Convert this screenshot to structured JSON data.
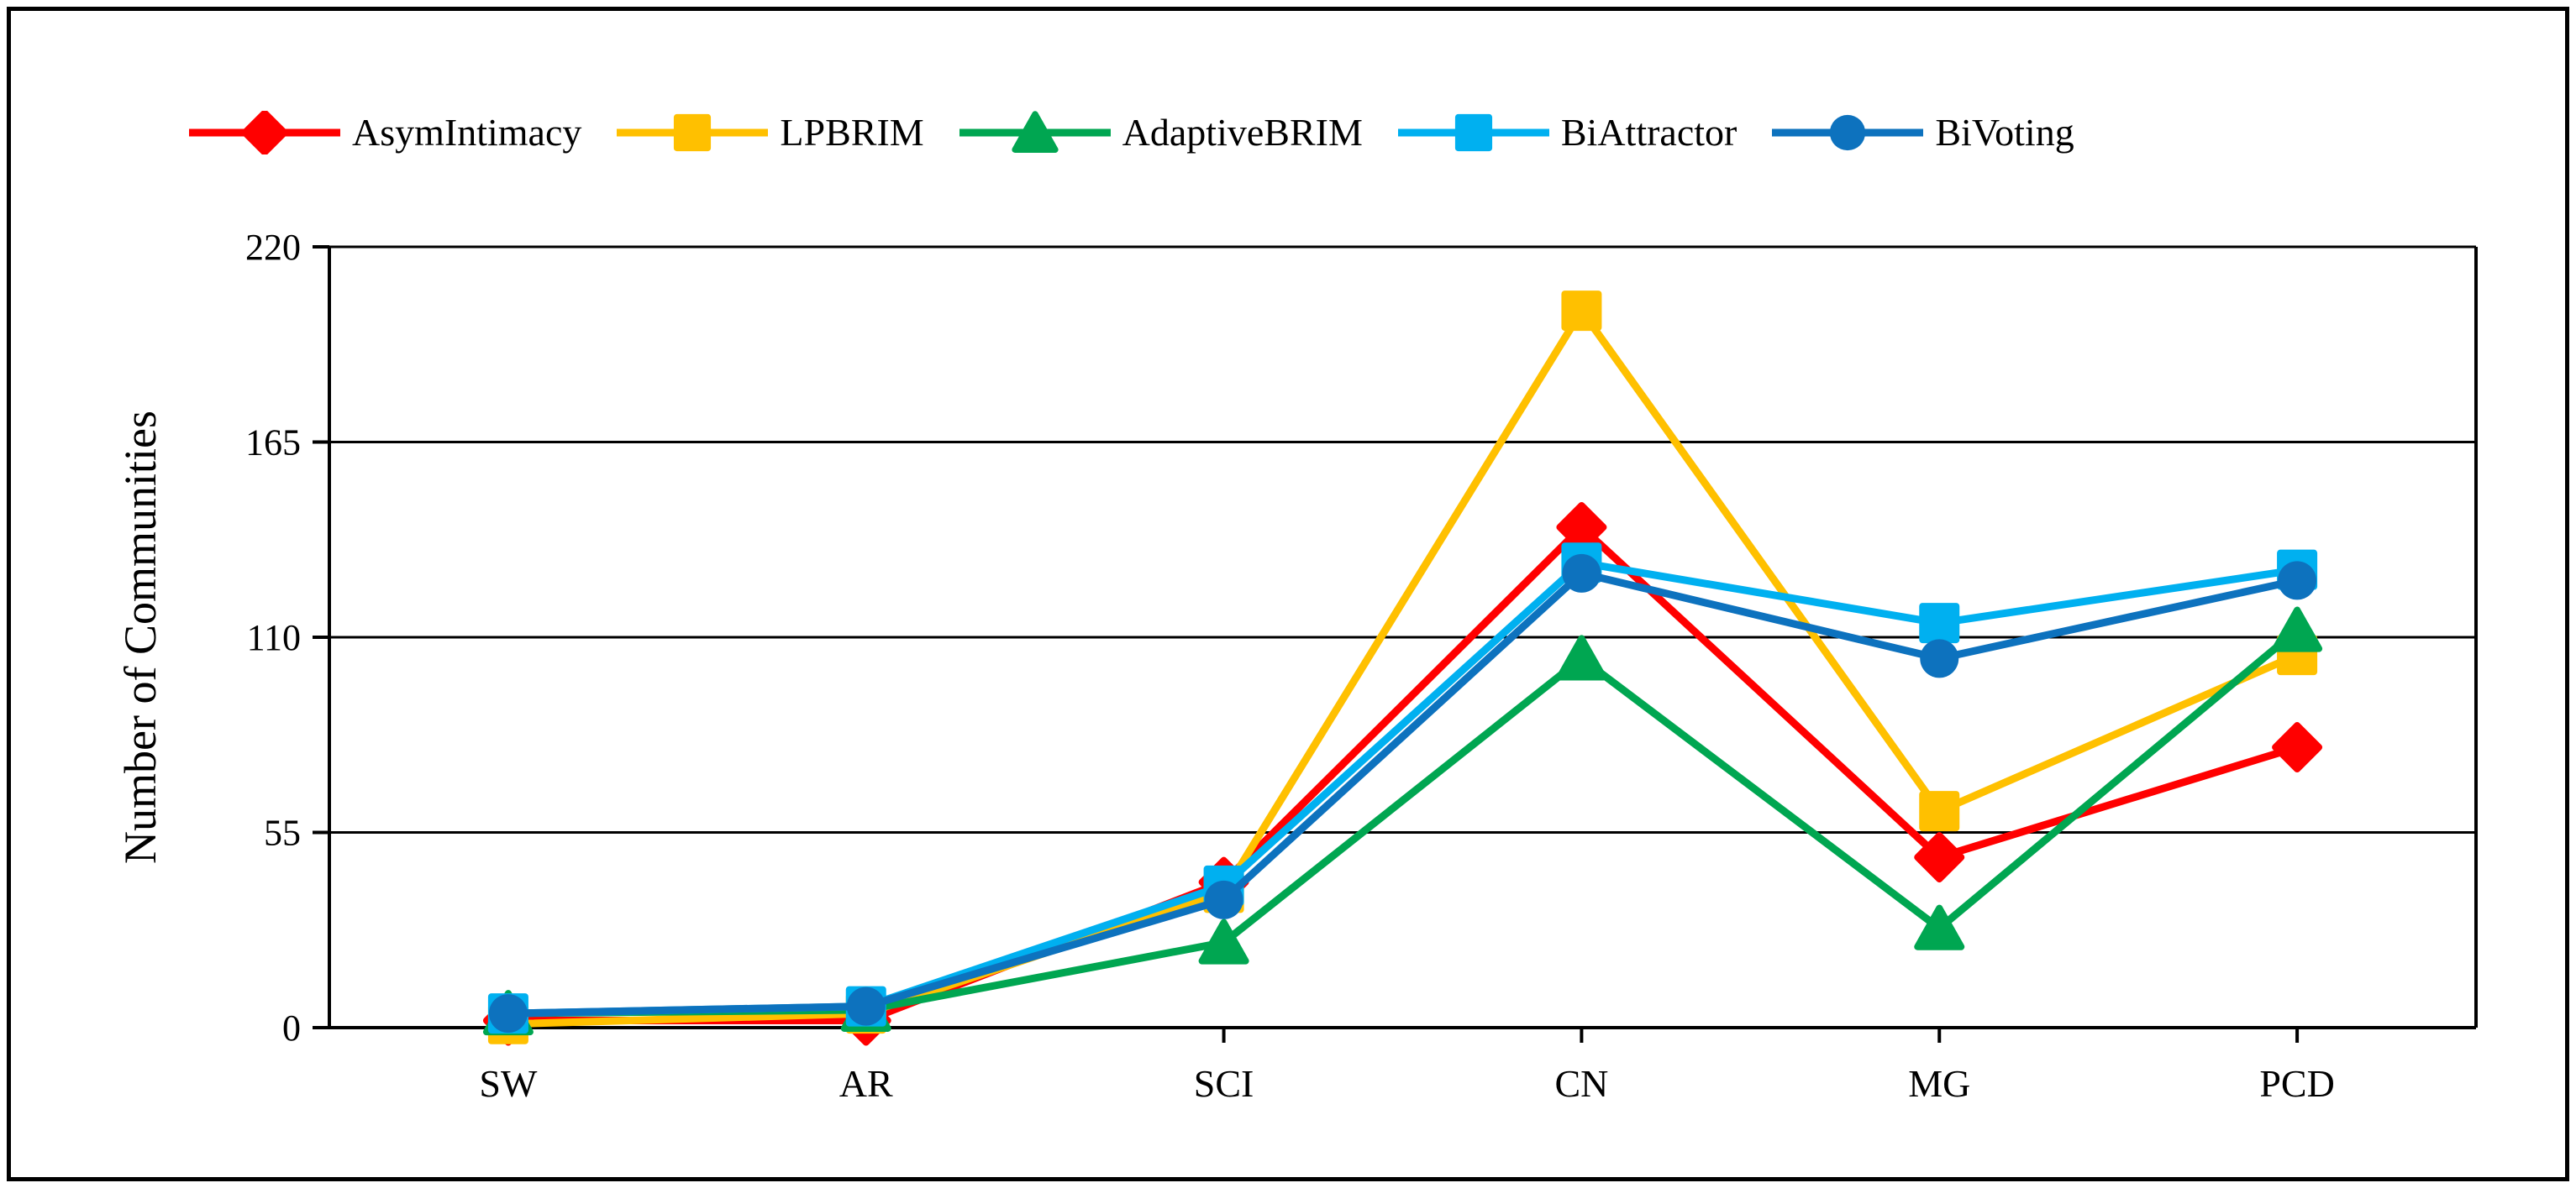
{
  "figure": {
    "background": "#FFFFFF",
    "border_color": "#000000",
    "axis_color": "#000000",
    "text_color": "#000000"
  },
  "chart_data": {
    "type": "line",
    "title": "",
    "xlabel": "",
    "ylabel": "Number of Communities",
    "categories": [
      "SW",
      "AR",
      "SCI",
      "CN",
      "MG",
      "PCD"
    ],
    "ylim": [
      0,
      220
    ],
    "yticks": [
      0,
      55,
      110,
      165,
      220
    ],
    "grid": "horizontal-black-gridlines",
    "legend_position": "top",
    "series": [
      {
        "name": "AsymIntimacy",
        "color": "#FF0000",
        "marker": "diamond",
        "values": [
          2,
          2,
          41,
          141,
          48,
          79
        ]
      },
      {
        "name": "LPBRIM",
        "color": "#FFC000",
        "marker": "square",
        "values": [
          1,
          4,
          38,
          202,
          61,
          105
        ]
      },
      {
        "name": "AdaptiveBRIM",
        "color": "#00A651",
        "marker": "triangle",
        "values": [
          4,
          5,
          24,
          104,
          28,
          112
        ]
      },
      {
        "name": "BiAttractor",
        "color": "#00B0F0",
        "marker": "square",
        "values": [
          4,
          6,
          40,
          131,
          114,
          129
        ]
      },
      {
        "name": "BiVoting",
        "color": "#0D72BE",
        "marker": "circle",
        "values": [
          4,
          6,
          36,
          128,
          104,
          126
        ]
      }
    ]
  }
}
